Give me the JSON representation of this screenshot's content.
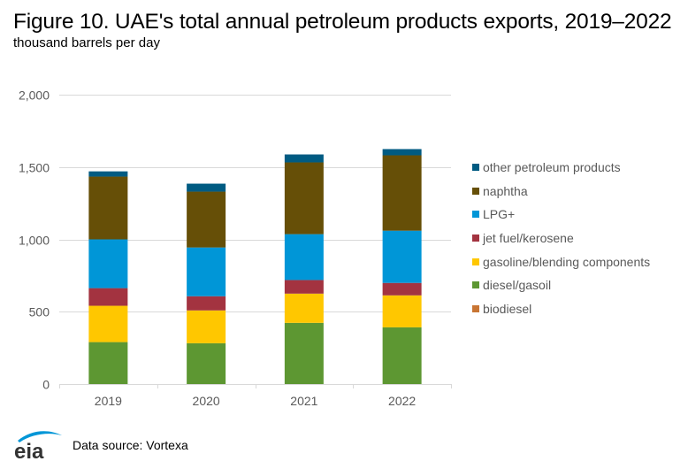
{
  "header": {
    "title": "Figure 10. UAE's total annual petroleum products exports, 2019–2022",
    "subtitle": "thousand barrels per day"
  },
  "footer": {
    "source": "Data source: Vortexa",
    "logo_text": "eia"
  },
  "chart_data": {
    "type": "bar",
    "stacked": true,
    "title": "Figure 10. UAE's total annual petroleum products exports, 2019–2022",
    "subtitle": "thousand barrels per day",
    "xlabel": "",
    "ylabel": "thousand barrels per day",
    "categories": [
      "2019",
      "2020",
      "2021",
      "2022"
    ],
    "ylim": [
      0,
      2000
    ],
    "yticks": [
      0,
      500,
      1000,
      1500,
      2000
    ],
    "ytick_labels": [
      "0",
      "500",
      "1,000",
      "1,500",
      "2,000"
    ],
    "grid": true,
    "legend_position": "right",
    "series": [
      {
        "name": "biodiesel",
        "color": "#C87533",
        "values": [
          0,
          0,
          0,
          0
        ]
      },
      {
        "name": "diesel/gasoil",
        "color": "#5D9732",
        "values": [
          290,
          282,
          423,
          392
        ]
      },
      {
        "name": "gasoline/blending components",
        "color": "#FFC700",
        "values": [
          251,
          227,
          202,
          221
        ]
      },
      {
        "name": "jet fuel/kerosene",
        "color": "#A33340",
        "values": [
          122,
          98,
          94,
          86
        ]
      },
      {
        "name": "LPG+",
        "color": "#0096D7",
        "values": [
          337,
          337,
          317,
          361
        ]
      },
      {
        "name": "naphtha",
        "color": "#664F07",
        "values": [
          434,
          386,
          496,
          521
        ]
      },
      {
        "name": "other petroleum products",
        "color": "#005B82",
        "values": [
          36,
          55,
          55,
          43
        ]
      }
    ],
    "legend_order": [
      "other petroleum products",
      "naphtha",
      "LPG+",
      "jet fuel/kerosene",
      "gasoline/blending components",
      "diesel/gasoil",
      "biodiesel"
    ]
  }
}
